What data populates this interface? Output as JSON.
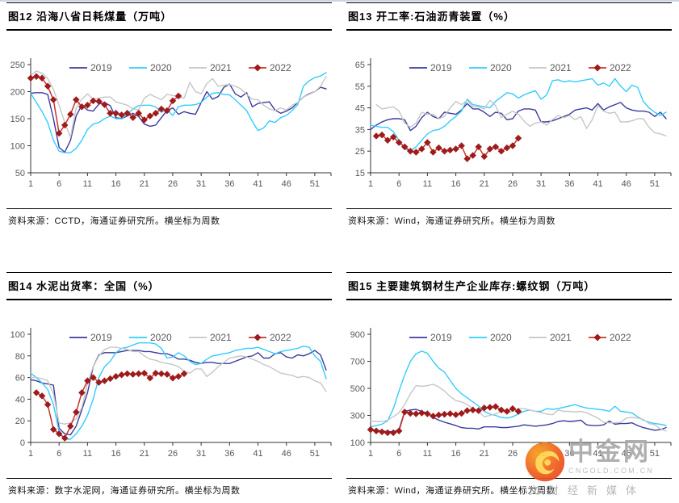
{
  "page": {
    "background": "#ffffff"
  },
  "watermark": {
    "brand": "中金网",
    "domain": "CNGOLD.COM.CN",
    "tagline": "文财经新媒体",
    "logo_colors": {
      "circle_outer": "#e8471f",
      "circle_inner": "#f7a21b",
      "swirl": "#ffd24d"
    }
  },
  "axis_style": {
    "tick_color": "#595959",
    "axis_color": "#333333",
    "legend_text_color": "#595959"
  },
  "charts": [
    {
      "title": "图12 沿海八省日耗煤量（万吨）",
      "source": "资料来源：CCTD，海通证券研究所。横坐标为周数",
      "chart_data": {
        "type": "line",
        "xlabel": "周数",
        "x_ticks": [
          1,
          6,
          11,
          16,
          21,
          26,
          31,
          36,
          41,
          46,
          51
        ],
        "x_max": 53,
        "ylim": [
          50,
          250
        ],
        "y_ticks": [
          50,
          100,
          150,
          200,
          250
        ],
        "legend_position": "top-inside",
        "series": [
          {
            "name": "2019",
            "color": "#3B3B9E",
            "start": 1,
            "values": [
              197,
              198,
              198,
              195,
              150,
              97,
              88,
              110,
              155,
              175,
              166,
              164,
              177,
              180,
              174,
              152,
              150,
              155,
              160,
              154,
              140,
              136,
              138,
              152,
              165,
              170,
              158,
              163,
              160,
              158,
              180,
              200,
              186,
              191,
              208,
              214,
              196,
              190,
              198,
              172,
              178,
              180,
              181,
              166,
              160,
              164,
              170,
              180,
              190,
              196,
              200,
              208,
              205
            ]
          },
          {
            "name": "2020",
            "color": "#33CCFF",
            "start": 1,
            "values": [
              197,
              180,
              163,
              143,
              110,
              90,
              87,
              87,
              95,
              110,
              130,
              140,
              143,
              150,
              155,
              150,
              150,
              158,
              168,
              174,
              175,
              175,
              172,
              162,
              166,
              156,
              172,
              175,
              175,
              176,
              180,
              190,
              197,
              198,
              195,
              194,
              185,
              175,
              165,
              145,
              128,
              133,
              146,
              143,
              152,
              156,
              165,
              176,
              210,
              220,
              226,
              229,
              235
            ]
          },
          {
            "name": "2021",
            "color": "#C6C6C6",
            "start": 1,
            "values": [
              230,
              238,
              234,
              224,
              204,
              175,
              143,
              115,
              170,
              186,
              196,
              186,
              188,
              190,
              190,
              181,
              178,
              175,
              168,
              166,
              188,
              195,
              190,
              185,
              195,
              193,
              190,
              188,
              217,
              200,
              196,
              215,
              224,
              210,
              212,
              213,
              210,
              205,
              195,
              186,
              185,
              175,
              168,
              165,
              170,
              166,
              175,
              180,
              190,
              195,
              200,
              210,
              228
            ]
          },
          {
            "name": "2022",
            "color": "#C9342C",
            "marker": "diamond",
            "marker_color": "#9E1B1B",
            "start": 1,
            "values": [
              225,
              228,
              225,
              210,
              185,
              123,
              138,
              158,
              185,
              172,
              175,
              183,
              182,
              176,
              160,
              160,
              157,
              160,
              152,
              160,
              148,
              155,
              160,
              168,
              165,
              183,
              192
            ]
          }
        ]
      }
    },
    {
      "title": "图13 开工率:石油沥青装置（%）",
      "source": "资料来源：Wind，海通证券研究所。横坐标为周数",
      "chart_data": {
        "type": "line",
        "xlabel": "周数",
        "x_ticks": [
          1,
          6,
          11,
          16,
          21,
          26,
          31,
          36,
          41,
          46,
          51
        ],
        "x_max": 53,
        "ylim": [
          15,
          65
        ],
        "y_ticks": [
          15,
          25,
          35,
          45,
          55,
          65
        ],
        "legend_position": "top-inside",
        "series": [
          {
            "name": "2019",
            "color": "#3B3B9E",
            "start": 1,
            "values": [
              35,
              37,
              38.5,
              39.5,
              40,
              40,
              39.5,
              34.5,
              36.5,
              40.5,
              43,
              41,
              40,
              43,
              42.5,
              42,
              44,
              47,
              44.5,
              44.5,
              43,
              41,
              43,
              42.5,
              39.5,
              40,
              43.5,
              44.5,
              44.5,
              44,
              38.5,
              38.5,
              39,
              40,
              41,
              42,
              44,
              44.5,
              45,
              44,
              47,
              44,
              45.5,
              46.5,
              47.5,
              45,
              44,
              43.5,
              43.5,
              43,
              41,
              43,
              40
            ]
          },
          {
            "name": "2020",
            "color": "#33CCFF",
            "start": 1,
            "values": [
              37,
              36.5,
              36,
              36,
              34,
              30,
              26,
              25,
              27,
              30,
              33,
              34.5,
              35,
              36.5,
              39,
              41,
              43.5,
              49,
              46.5,
              46,
              45.5,
              45,
              48,
              50,
              52,
              51.5,
              49.5,
              51,
              52,
              53,
              49,
              51,
              57.5,
              58,
              57,
              57.5,
              57,
              57.5,
              58,
              58.5,
              55.5,
              56.5,
              55,
              58.5,
              55,
              52.5,
              55.5,
              54.5,
              48,
              45,
              43,
              41.5,
              43
            ]
          },
          {
            "name": "2021",
            "color": "#C6C6C6",
            "start": 2,
            "values": [
              46.5,
              44.5,
              45,
              45.5,
              43.5,
              38,
              36,
              38,
              43,
              42,
              42,
              40,
              41,
              45,
              48,
              46.5,
              48.5,
              45.5,
              45.5,
              44.5,
              48.5,
              46,
              40.5,
              42,
              43.5,
              42,
              39,
              36.5,
              38,
              38.5,
              37,
              39.5,
              41.5,
              40.5,
              41.5,
              39.5,
              41,
              35.5,
              39.5,
              46,
              43.5,
              42.5,
              43,
              38.5,
              38.5,
              39,
              40,
              40,
              36,
              33.5,
              33,
              32
            ]
          },
          {
            "name": "2022",
            "color": "#C9342C",
            "marker": "diamond",
            "marker_color": "#9E1B1B",
            "start": 2,
            "values": [
              32,
              32.5,
              30,
              31.5,
              29,
              27,
              25,
              24.5,
              26,
              29,
              24.5,
              26.5,
              25,
              25.5,
              26,
              27.5,
              21.5,
              23,
              27,
              22.5,
              26,
              27,
              25,
              26.5,
              27.5,
              31
            ]
          }
        ]
      }
    },
    {
      "title": "图14 水泥出货率：全国（%）",
      "source": "资料来源：数字水泥网，海通证券研究所。横坐标为周数",
      "chart_data": {
        "type": "line",
        "xlabel": "周数",
        "x_ticks": [
          1,
          6,
          11,
          16,
          21,
          26,
          31,
          36,
          41,
          46,
          51
        ],
        "x_max": 53,
        "ylim": [
          0,
          100
        ],
        "y_ticks": [
          0,
          20,
          40,
          60,
          80,
          100
        ],
        "legend_position": "top-inside",
        "series": [
          {
            "name": "2019",
            "color": "#3B3B9E",
            "start": 1,
            "values": [
              58,
              57,
              55,
              54,
              53,
              13,
              8,
              7,
              15,
              30,
              46,
              70,
              81,
              83,
              83,
              83,
              84,
              85,
              85,
              85,
              84,
              84,
              83,
              82,
              82,
              80,
              77,
              77,
              76,
              74,
              73,
              74,
              74,
              73,
              73,
              73,
              75,
              77,
              79,
              80,
              83,
              78,
              78,
              82,
              83,
              79,
              78,
              81,
              80,
              82,
              85,
              81,
              67
            ]
          },
          {
            "name": "2020",
            "color": "#33CCFF",
            "start": 1,
            "values": [
              64,
              60,
              55,
              49,
              35,
              10,
              3,
              3,
              8,
              15,
              25,
              40,
              60,
              70,
              75,
              83,
              87,
              88,
              90,
              92,
              92,
              92,
              91,
              87,
              78,
              79,
              83,
              80,
              75,
              72,
              73,
              77,
              80,
              81,
              82,
              83,
              85,
              86,
              87,
              87,
              88,
              86,
              84,
              82,
              84,
              85,
              86,
              87,
              89,
              88,
              80,
              75,
              59
            ]
          },
          {
            "name": "2021",
            "color": "#C6C6C6",
            "start": 1,
            "values": [
              60,
              60,
              59,
              57,
              45,
              18,
              17,
              18,
              22,
              32,
              55,
              70,
              80,
              86,
              88,
              88,
              87,
              86,
              84,
              84,
              80,
              77,
              76,
              74,
              73,
              72,
              70,
              66,
              64,
              68,
              68,
              61,
              65,
              70,
              74,
              78,
              79,
              80,
              79,
              77,
              75,
              72,
              70,
              67,
              64,
              63,
              62,
              60,
              61,
              60,
              57,
              55,
              47
            ]
          },
          {
            "name": "2022",
            "color": "#C9342C",
            "marker": "diamond",
            "marker_color": "#9E1B1B",
            "start": 2,
            "values": [
              46,
              43,
              35,
              12,
              8,
              4,
              15,
              28,
              46,
              57,
              60,
              55.5,
              57,
              59,
              61,
              62.5,
              63.5,
              63,
              63.5,
              64,
              59.5,
              64,
              63.5,
              63,
              59.5,
              61,
              63.5
            ]
          }
        ]
      }
    },
    {
      "title": "图15 主要建筑钢材生产企业库存:螺纹钢（万吨）",
      "source": "资料来源：Wind，海通证券研究所。横坐标为周数",
      "chart_data": {
        "type": "line",
        "xlabel": "周数",
        "x_ticks": [
          1,
          6,
          11,
          16,
          21,
          26,
          31,
          36,
          41,
          46,
          51
        ],
        "x_max": 53,
        "ylim": [
          100,
          900
        ],
        "y_ticks": [
          100,
          300,
          500,
          700,
          900
        ],
        "legend_position": "top-inside",
        "series": [
          {
            "name": "2019",
            "color": "#3B3B9E",
            "start": 1,
            "values": [
              195,
              190,
              185,
              180,
              180,
              195,
              330,
              340,
              345,
              330,
              318,
              285,
              265,
              250,
              238,
              225,
              210,
              205,
              205,
              200,
              215,
              215,
              215,
              210,
              210,
              215,
              220,
              230,
              225,
              220,
              225,
              230,
              240,
              255,
              260,
              255,
              258,
              265,
              230,
              225,
              225,
              230,
              258,
              235,
              240,
              240,
              245,
              225,
              210,
              200,
              190,
              195,
              210
            ]
          },
          {
            "name": "2020",
            "color": "#33CCFF",
            "start": 1,
            "values": [
              215,
              225,
              235,
              260,
              350,
              480,
              600,
              700,
              755,
              775,
              760,
              700,
              650,
              620,
              560,
              500,
              460,
              430,
              400,
              370,
              330,
              310,
              300,
              285,
              280,
              290,
              310,
              330,
              340,
              330,
              330,
              350,
              345,
              350,
              360,
              370,
              380,
              365,
              355,
              350,
              345,
              340,
              330,
              368,
              330,
              325,
              318,
              290,
              265,
              250,
              240,
              235,
              225
            ]
          },
          {
            "name": "2021",
            "color": "#C6C6C6",
            "start": 1,
            "values": [
              260,
              255,
              255,
              265,
              290,
              320,
              380,
              460,
              520,
              515,
              520,
              530,
              510,
              480,
              440,
              410,
              400,
              380,
              350,
              330,
              290,
              300,
              310,
              330,
              320,
              330,
              350,
              350,
              340,
              330,
              320,
              310,
              305,
              340,
              330,
              330,
              325,
              330,
              320,
              300,
              280,
              250,
              245,
              245,
              250,
              280,
              285,
              280,
              270,
              240,
              230,
              200,
              185
            ]
          },
          {
            "name": "2022",
            "color": "#C9342C",
            "marker": "diamond",
            "marker_color": "#9E1B1B",
            "start": 1,
            "values": [
              195,
              185,
              178,
              172,
              172,
              185,
              325,
              315,
              312,
              318,
              312,
              295,
              303,
              308,
              313,
              305,
              315,
              335,
              340,
              335,
              355,
              360,
              365,
              340,
              330,
              350,
              330
            ]
          }
        ]
      }
    }
  ]
}
